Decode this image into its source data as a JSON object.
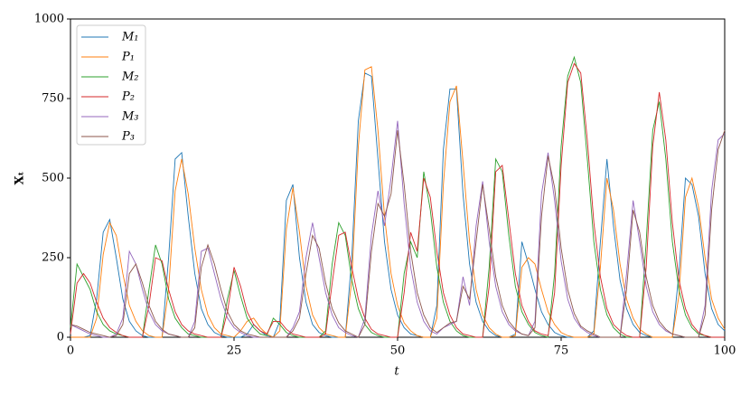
{
  "chart_data": {
    "type": "line",
    "xlabel": "t",
    "ylabel": "Xₜ",
    "xlim": [
      0,
      100
    ],
    "xticks": [
      0,
      25,
      50,
      75,
      100
    ],
    "ylim": [
      0,
      1000
    ],
    "yticks": [
      0,
      250,
      500,
      750,
      1000
    ],
    "legend": "upper left",
    "x": [
      0,
      1,
      2,
      3,
      4,
      5,
      6,
      7,
      8,
      9,
      10,
      11,
      12,
      13,
      14,
      15,
      16,
      17,
      18,
      19,
      20,
      21,
      22,
      23,
      24,
      25,
      26,
      27,
      28,
      29,
      30,
      31,
      32,
      33,
      34,
      35,
      36,
      37,
      38,
      39,
      40,
      41,
      42,
      43,
      44,
      45,
      46,
      47,
      48,
      49,
      50,
      51,
      52,
      53,
      54,
      55,
      56,
      57,
      58,
      59,
      60,
      61,
      62,
      63,
      64,
      65,
      66,
      67,
      68,
      69,
      70,
      71,
      72,
      73,
      74,
      75,
      76,
      77,
      78,
      79,
      80,
      81,
      82,
      83,
      84,
      85,
      86,
      87,
      88,
      89,
      90,
      91,
      92,
      93,
      94,
      95,
      96,
      97,
      98,
      99,
      100
    ],
    "series": [
      {
        "name": "M₁",
        "color": "#1f77b4",
        "values": [
          0,
          0,
          0,
          5,
          120,
          330,
          370,
          250,
          120,
          50,
          20,
          5,
          0,
          0,
          0,
          250,
          560,
          580,
          380,
          200,
          90,
          40,
          15,
          5,
          0,
          0,
          0,
          10,
          40,
          20,
          5,
          0,
          50,
          430,
          480,
          250,
          110,
          40,
          15,
          5,
          0,
          0,
          0,
          250,
          680,
          830,
          820,
          560,
          300,
          150,
          70,
          30,
          10,
          5,
          0,
          0,
          100,
          590,
          780,
          780,
          450,
          230,
          110,
          50,
          20,
          5,
          0,
          0,
          10,
          300,
          230,
          150,
          80,
          40,
          15,
          5,
          0,
          0,
          0,
          0,
          20,
          300,
          560,
          350,
          180,
          90,
          40,
          15,
          5,
          0,
          0,
          0,
          0,
          200,
          500,
          480,
          380,
          200,
          90,
          40,
          20
        ]
      },
      {
        "name": "P₁",
        "color": "#ff7f0e",
        "values": [
          0,
          0,
          0,
          0,
          60,
          260,
          360,
          320,
          200,
          100,
          50,
          20,
          5,
          0,
          0,
          150,
          460,
          560,
          450,
          280,
          150,
          70,
          30,
          10,
          5,
          0,
          20,
          50,
          60,
          30,
          10,
          0,
          20,
          340,
          470,
          330,
          160,
          70,
          30,
          10,
          5,
          0,
          0,
          180,
          600,
          840,
          850,
          650,
          380,
          200,
          100,
          45,
          20,
          5,
          0,
          0,
          60,
          480,
          740,
          790,
          550,
          300,
          150,
          70,
          30,
          10,
          0,
          0,
          5,
          220,
          250,
          230,
          150,
          80,
          40,
          15,
          5,
          0,
          0,
          0,
          10,
          220,
          500,
          400,
          230,
          120,
          60,
          25,
          10,
          0,
          0,
          0,
          0,
          130,
          440,
          500,
          410,
          250,
          120,
          60,
          25
        ]
      },
      {
        "name": "M₂",
        "color": "#2ca02c",
        "values": [
          30,
          230,
          190,
          150,
          80,
          40,
          20,
          10,
          5,
          0,
          0,
          0,
          150,
          290,
          230,
          120,
          60,
          30,
          10,
          5,
          0,
          0,
          0,
          0,
          120,
          210,
          130,
          60,
          30,
          10,
          5,
          60,
          40,
          15,
          5,
          0,
          0,
          0,
          0,
          20,
          230,
          360,
          320,
          180,
          90,
          40,
          15,
          5,
          0,
          0,
          0,
          200,
          300,
          250,
          520,
          400,
          220,
          110,
          50,
          20,
          5,
          0,
          0,
          0,
          220,
          560,
          520,
          320,
          160,
          80,
          40,
          15,
          5,
          0,
          200,
          600,
          820,
          880,
          800,
          560,
          300,
          150,
          70,
          30,
          10,
          0,
          0,
          0,
          300,
          650,
          740,
          560,
          300,
          150,
          70,
          30,
          10,
          5,
          0,
          0,
          0
        ]
      },
      {
        "name": "P₂",
        "color": "#d62728",
        "values": [
          10,
          170,
          200,
          170,
          110,
          60,
          30,
          15,
          5,
          0,
          0,
          0,
          100,
          250,
          240,
          150,
          80,
          40,
          20,
          10,
          5,
          0,
          0,
          0,
          80,
          220,
          160,
          80,
          40,
          20,
          10,
          50,
          50,
          25,
          10,
          5,
          0,
          0,
          0,
          10,
          170,
          320,
          330,
          220,
          120,
          60,
          25,
          10,
          5,
          0,
          0,
          140,
          330,
          270,
          500,
          440,
          270,
          140,
          70,
          30,
          10,
          5,
          0,
          0,
          160,
          520,
          540,
          370,
          200,
          100,
          50,
          20,
          10,
          5,
          140,
          540,
          800,
          860,
          830,
          620,
          360,
          190,
          90,
          40,
          20,
          5,
          0,
          0,
          220,
          600,
          770,
          620,
          360,
          180,
          90,
          40,
          15,
          5,
          0,
          0,
          0
        ]
      },
      {
        "name": "M₃",
        "color": "#9467bd",
        "values": [
          40,
          30,
          20,
          10,
          5,
          0,
          0,
          10,
          60,
          270,
          230,
          150,
          80,
          40,
          20,
          10,
          5,
          0,
          0,
          50,
          270,
          280,
          200,
          120,
          60,
          30,
          15,
          5,
          0,
          0,
          0,
          0,
          0,
          0,
          30,
          80,
          250,
          360,
          250,
          140,
          70,
          30,
          15,
          5,
          0,
          60,
          320,
          460,
          350,
          500,
          680,
          420,
          220,
          110,
          50,
          20,
          10,
          30,
          40,
          50,
          190,
          100,
          350,
          490,
          300,
          160,
          80,
          40,
          20,
          10,
          5,
          50,
          450,
          580,
          430,
          240,
          120,
          60,
          30,
          15,
          5,
          0,
          0,
          0,
          0,
          200,
          430,
          300,
          160,
          80,
          40,
          20,
          10,
          5,
          0,
          0,
          0,
          100,
          460,
          620,
          640
        ]
      },
      {
        "name": "P₃",
        "color": "#8c564b",
        "values": [
          40,
          35,
          25,
          15,
          10,
          5,
          0,
          5,
          40,
          200,
          230,
          170,
          100,
          50,
          25,
          10,
          5,
          0,
          0,
          30,
          220,
          290,
          230,
          150,
          80,
          40,
          20,
          10,
          5,
          0,
          0,
          0,
          0,
          0,
          20,
          60,
          200,
          320,
          280,
          170,
          90,
          45,
          20,
          10,
          0,
          40,
          270,
          420,
          380,
          450,
          650,
          480,
          270,
          140,
          70,
          30,
          15,
          30,
          45,
          50,
          160,
          120,
          300,
          480,
          340,
          190,
          100,
          50,
          25,
          10,
          5,
          30,
          380,
          570,
          470,
          280,
          150,
          75,
          35,
          20,
          10,
          0,
          0,
          0,
          0,
          150,
          400,
          330,
          190,
          100,
          50,
          25,
          10,
          5,
          0,
          0,
          0,
          70,
          400,
          590,
          650
        ]
      }
    ]
  }
}
